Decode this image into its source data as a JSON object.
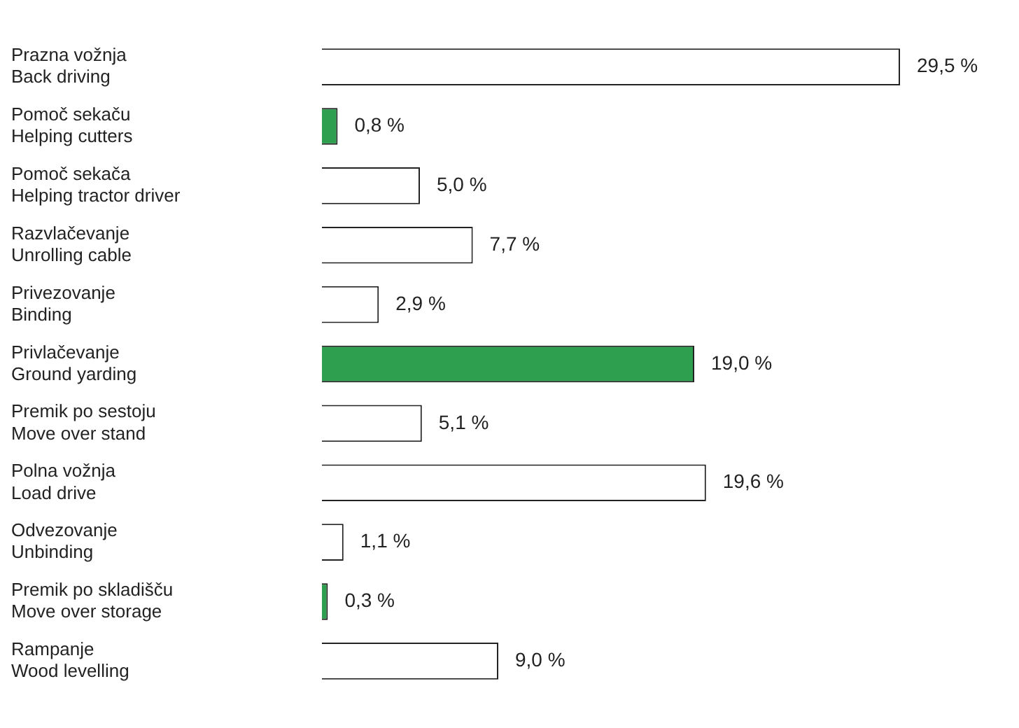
{
  "chart_data": {
    "type": "bar",
    "orientation": "horizontal",
    "categories": [
      "Prazna vožnja\nBack driving",
      "Pomoč sekaču\nHelping cutters",
      "Pomoč sekača\nHelping tractor driver",
      "Razvlačevanje\nUnrolling cable",
      "Privezovanje\nBinding",
      "Privlačevanje\nGround yarding",
      "Premik po sestoju\nMove over stand",
      "Polna vožnja\nLoad drive",
      "Odvezovanje\nUnbinding",
      "Premik po skladišču\nMove over storage",
      "Rampanje\nWood levelling"
    ],
    "values": [
      29.5,
      0.8,
      5.0,
      7.7,
      2.9,
      19.0,
      5.1,
      19.6,
      1.1,
      0.3,
      9.0
    ],
    "colors": [
      "#ffffff",
      "#2e9e4f",
      "#ffffff",
      "#ffffff",
      "#ffffff",
      "#2e9e4f",
      "#ffffff",
      "#ffffff",
      "#ffffff",
      "#2e9e4f",
      "#ffffff"
    ],
    "value_labels": [
      "29,5 %",
      "0,8 %",
      "5,0 %",
      "7,7 %",
      "2,9 %",
      "19,0 %",
      "5,1 %",
      "19,6 %",
      "1,1 %",
      "0,3 %",
      "9,0 %"
    ],
    "grid": false,
    "legend": false
  }
}
